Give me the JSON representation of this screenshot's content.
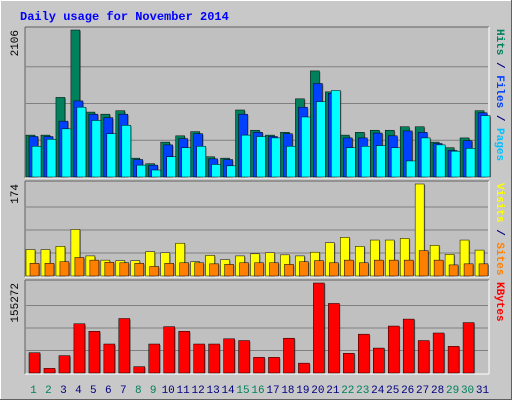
{
  "chart_data": {
    "type": "bar",
    "title": "Daily usage for November 2014",
    "colors": {
      "hits": "#00805c",
      "files": "#0040ff",
      "pages": "#00ffff",
      "visits": "#ffff00",
      "sites": "#ff8000",
      "kbytes": "#ff0000",
      "title": "#0000ff",
      "weekend_day": "#00805c",
      "weekday": "#000080",
      "panel_bg": "#c0c0c0",
      "gridline": "#808080"
    },
    "days": [
      "1",
      "2",
      "3",
      "4",
      "5",
      "6",
      "7",
      "8",
      "9",
      "10",
      "11",
      "12",
      "13",
      "14",
      "15",
      "16",
      "17",
      "18",
      "19",
      "20",
      "21",
      "22",
      "23",
      "24",
      "25",
      "26",
      "27",
      "28",
      "29",
      "30",
      "31"
    ],
    "weekend_days": [
      "1",
      "2",
      "8",
      "9",
      "15",
      "16",
      "22",
      "23",
      "29",
      "30"
    ],
    "panels": [
      {
        "key": "hits_files_pages",
        "ymax_label": "2106",
        "ymax": 2106,
        "side_label": [
          {
            "text": "Pages",
            "color": "#00c0ff"
          },
          {
            "text": " / ",
            "color": "#000080"
          },
          {
            "text": "Files",
            "color": "#0040ff"
          },
          {
            "text": " / ",
            "color": "#000080"
          },
          {
            "text": "Hits",
            "color": "#00805c"
          }
        ],
        "series": [
          {
            "name": "Hits",
            "color": "#00805c",
            "values": [
              600,
              600,
              1140,
              2106,
              930,
              900,
              950,
              270,
              190,
              500,
              590,
              650,
              290,
              270,
              960,
              670,
              600,
              640,
              1120,
              1520,
              1220,
              600,
              640,
              670,
              670,
              720,
              720,
              500,
              420,
              560,
              950
            ]
          },
          {
            "name": "Files",
            "color": "#0040ff",
            "values": [
              580,
              580,
              800,
              1090,
              900,
              850,
              900,
              250,
              170,
              460,
              550,
              620,
              260,
              250,
              900,
              640,
              580,
              620,
              1000,
              1340,
              1200,
              560,
              560,
              630,
              590,
              660,
              640,
              480,
              380,
              520,
              920
            ]
          },
          {
            "name": "Pages",
            "color": "#00ffff",
            "values": [
              440,
              540,
              690,
              1000,
              810,
              620,
              740,
              170,
              100,
              290,
              420,
              440,
              180,
              160,
              600,
              580,
              560,
              440,
              860,
              1080,
              1240,
              420,
              440,
              450,
              420,
              230,
              560,
              460,
              370,
              410,
              880
            ]
          }
        ]
      },
      {
        "key": "visits_sites",
        "ymax_label": "174",
        "ymax": 174,
        "side_label": [
          {
            "text": "Sites",
            "color": "#ff8000"
          },
          {
            "text": " / ",
            "color": "#000080"
          },
          {
            "text": "Visits",
            "color": "#ffff00"
          }
        ],
        "series": [
          {
            "name": "Visits",
            "color": "#ffff00",
            "values": [
              50,
              50,
              56,
              88,
              38,
              30,
              29,
              29,
              46,
              44,
              62,
              27,
              39,
              31,
              38,
              42,
              44,
              40,
              38,
              45,
              63,
              73,
              56,
              68,
              68,
              71,
              174,
              58,
              41,
              68,
              49
            ]
          },
          {
            "name": "Sites",
            "color": "#ff8000",
            "values": [
              24,
              24,
              27,
              35,
              30,
              26,
              25,
              24,
              18,
              24,
              25,
              25,
              23,
              22,
              25,
              25,
              25,
              22,
              27,
              29,
              25,
              30,
              25,
              30,
              30,
              30,
              48,
              30,
              21,
              23,
              23
            ]
          }
        ]
      },
      {
        "key": "kbytes",
        "ymax_label": "155272",
        "ymax": 155272,
        "side_label": [
          {
            "text": "KBytes",
            "color": "#ff0000"
          }
        ],
        "series": [
          {
            "name": "KBytes",
            "color": "#ff0000",
            "values": [
              35000,
              8000,
              30000,
              85000,
              72000,
              50000,
              94000,
              11000,
              50000,
              80000,
              72000,
              50000,
              50000,
              59000,
              56000,
              27000,
              27000,
              60000,
              17000,
              155272,
              120000,
              34000,
              67000,
              43000,
              81000,
              93000,
              56000,
              69000,
              46000,
              87000,
              0
            ]
          }
        ]
      }
    ]
  }
}
